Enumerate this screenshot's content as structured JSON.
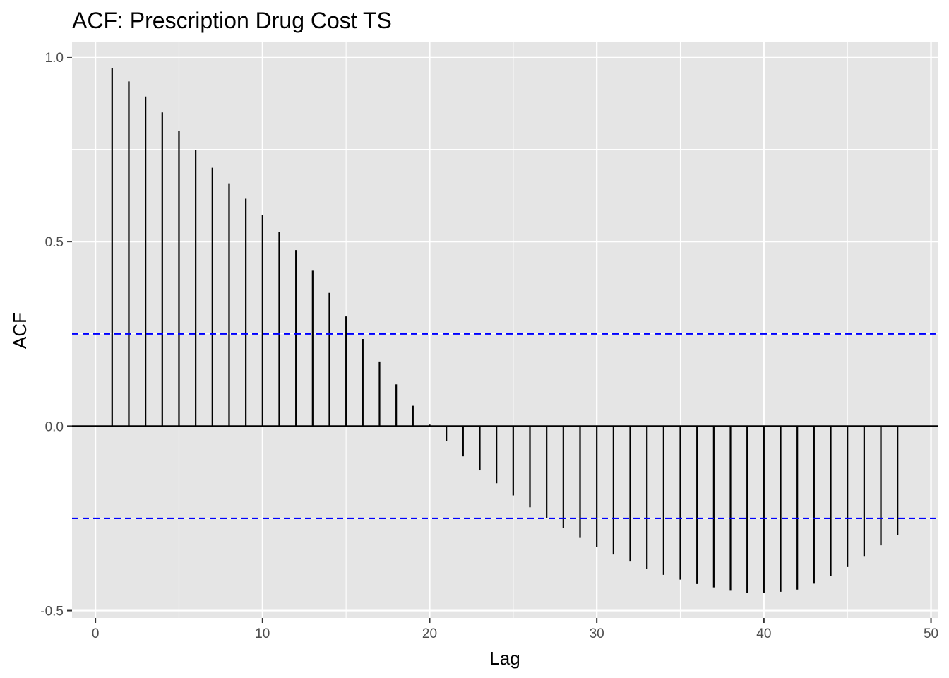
{
  "chart_data": {
    "type": "bar",
    "title": "ACF: Prescription Drug Cost TS",
    "xlabel": "Lag",
    "ylabel": "ACF",
    "xlim": [
      -1.4,
      50.4
    ],
    "ylim": [
      -0.52,
      1.04
    ],
    "x_ticks": [
      0,
      10,
      20,
      30,
      40,
      50
    ],
    "x_tick_labels": [
      "0",
      "10",
      "20",
      "30",
      "40",
      "50"
    ],
    "y_ticks": [
      -0.5,
      0.0,
      0.5,
      1.0
    ],
    "y_tick_labels": [
      "-0.5",
      "0.0",
      "0.5",
      "1.0"
    ],
    "grid": true,
    "confidence_bounds": [
      0.25,
      -0.25
    ],
    "colors": {
      "panel_background": "#e5e5e5",
      "grid": "#ffffff",
      "bars": "#000000",
      "bounds": "#0000ff"
    },
    "lags": [
      1,
      2,
      3,
      4,
      5,
      6,
      7,
      8,
      9,
      10,
      11,
      12,
      13,
      14,
      15,
      16,
      17,
      18,
      19,
      20,
      21,
      22,
      23,
      24,
      25,
      26,
      27,
      28,
      29,
      30,
      31,
      32,
      33,
      34,
      35,
      36,
      37,
      38,
      39,
      40,
      41,
      42,
      43,
      44,
      45,
      46,
      47,
      48
    ],
    "values": [
      0.971,
      0.934,
      0.893,
      0.85,
      0.8,
      0.748,
      0.7,
      0.658,
      0.616,
      0.572,
      0.526,
      0.477,
      0.421,
      0.361,
      0.297,
      0.236,
      0.175,
      0.113,
      0.055,
      0.004,
      -0.04,
      -0.082,
      -0.12,
      -0.155,
      -0.188,
      -0.22,
      -0.25,
      -0.275,
      -0.303,
      -0.327,
      -0.348,
      -0.367,
      -0.386,
      -0.403,
      -0.416,
      -0.428,
      -0.437,
      -0.446,
      -0.451,
      -0.452,
      -0.449,
      -0.443,
      -0.427,
      -0.406,
      -0.382,
      -0.352,
      -0.323,
      -0.295
    ]
  }
}
